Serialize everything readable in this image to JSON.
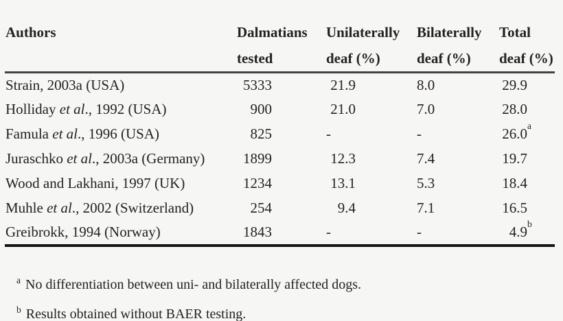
{
  "colors": {
    "background": "#f6f6f4",
    "text": "#24221e",
    "header_rule": "#44423a",
    "bottom_rule": "#17150f"
  },
  "table": {
    "columns": [
      {
        "line1": "Authors",
        "line2": ""
      },
      {
        "line1": "Dalmatians",
        "line2": "tested"
      },
      {
        "line1": "Unilaterally",
        "line2": "deaf (%)"
      },
      {
        "line1": "Bilaterally",
        "line2": "deaf (%)"
      },
      {
        "line1": "Total",
        "line2": "deaf (%)"
      }
    ],
    "rows": [
      {
        "author_pre": "Strain, 2003a (USA)",
        "author_italic": "",
        "author_post": "",
        "tested": "5333",
        "uni": "21.9",
        "bi": "8.0",
        "total": "29.9",
        "total_sup": ""
      },
      {
        "author_pre": "Holliday ",
        "author_italic": "et al",
        "author_post": "., 1992 (USA)",
        "tested": "900",
        "uni": "21.0",
        "bi": "7.0",
        "total": "28.0",
        "total_sup": ""
      },
      {
        "author_pre": "Famula ",
        "author_italic": "et al",
        "author_post": "., 1996 (USA)",
        "tested": "825",
        "uni": "-",
        "bi": "-",
        "total": "26.0",
        "total_sup": "a"
      },
      {
        "author_pre": "Juraschko ",
        "author_italic": "et al",
        "author_post": "., 2003a (Germany)",
        "tested": "1899",
        "uni": "12.3",
        "bi": "7.4",
        "total": "19.7",
        "total_sup": ""
      },
      {
        "author_pre": "Wood and Lakhani, 1997 (UK)",
        "author_italic": "",
        "author_post": "",
        "tested": "1234",
        "uni": "13.1",
        "bi": "5.3",
        "total": "18.4",
        "total_sup": ""
      },
      {
        "author_pre": "Muhle ",
        "author_italic": "et al",
        "author_post": "., 2002 (Switzerland)",
        "tested": "254",
        "uni": "9.4",
        "bi": "7.1",
        "total": "16.5",
        "total_sup": ""
      },
      {
        "author_pre": "Greibrokk, 1994 (Norway)",
        "author_italic": "",
        "author_post": "",
        "tested": "1843",
        "uni": "-",
        "bi": "-",
        "total": "4.9",
        "total_sup": "b"
      }
    ]
  },
  "footnotes": [
    {
      "marker": "a",
      "text": "No differentiation between uni- and bilaterally affected dogs."
    },
    {
      "marker": "b",
      "text": "Results obtained without BAER testing."
    }
  ]
}
